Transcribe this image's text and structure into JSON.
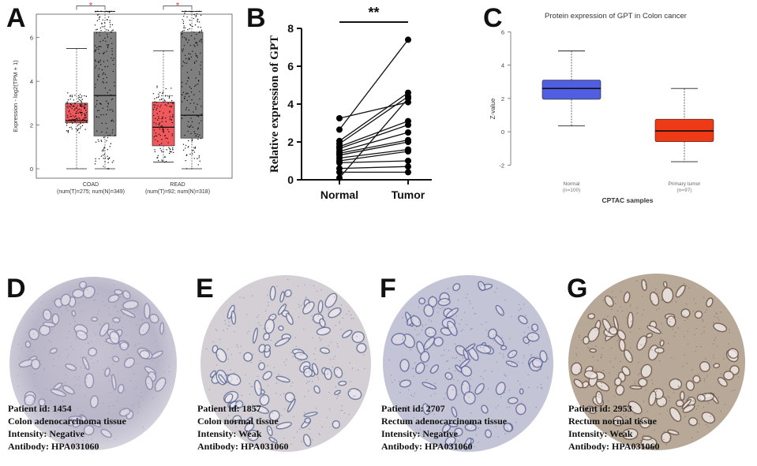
{
  "panels": {
    "a": {
      "label": "A"
    },
    "b": {
      "label": "B"
    },
    "c": {
      "label": "C"
    },
    "d": {
      "label": "D"
    },
    "e": {
      "label": "E"
    },
    "f": {
      "label": "F"
    },
    "g": {
      "label": "G"
    }
  },
  "colors": {
    "tumor_box": "#f0585c",
    "normal_box": "#7f7f7f",
    "cptac_normal": "#4f5fe0",
    "cptac_tumor": "#ee3a16",
    "sig_star": "#e8302a"
  },
  "chart_data": [
    {
      "id": "A",
      "type": "box",
      "ylabel": "Expression - log2(TPM + 1)",
      "ylim": [
        0,
        7
      ],
      "yticks": [
        "0",
        "2",
        "4",
        "6"
      ],
      "significance_symbol": "*",
      "groups": [
        {
          "name": "COAD",
          "sublabel": "(num(T)=275; num(N)=349)",
          "tumor": {
            "min": 0,
            "q1": 2.1,
            "median": 2.2,
            "q3": 3.0,
            "max": 5.5
          },
          "normal": {
            "min": 0,
            "q1": 1.5,
            "median": 3.35,
            "q3": 6.25,
            "max": 7.2
          }
        },
        {
          "name": "READ",
          "sublabel": "(num(T)=92; num(N)=318)",
          "tumor": {
            "min": 0.3,
            "q1": 1.05,
            "median": 1.9,
            "q3": 3.05,
            "max": 5.4
          },
          "normal": {
            "min": 0,
            "q1": 1.4,
            "median": 2.45,
            "q3": 6.25,
            "max": 7.2
          }
        }
      ]
    },
    {
      "id": "B",
      "type": "paired-line",
      "ylabel": "Relative expression of GPT",
      "categories": [
        "Normal",
        "Tumor"
      ],
      "ylim": [
        0,
        8
      ],
      "yticks": [
        "0",
        "2",
        "4",
        "6",
        "8"
      ],
      "significance": "**",
      "pairs": [
        [
          3.25,
          4.1
        ],
        [
          2.65,
          7.4
        ],
        [
          2.05,
          4.6
        ],
        [
          1.9,
          4.4
        ],
        [
          1.75,
          3.1
        ],
        [
          1.65,
          2.9
        ],
        [
          1.5,
          2.5
        ],
        [
          1.4,
          2.1
        ],
        [
          1.3,
          2.0
        ],
        [
          1.15,
          1.6
        ],
        [
          1.0,
          1.5
        ],
        [
          0.9,
          1.0
        ],
        [
          0.6,
          0.7
        ],
        [
          0.4,
          0.4
        ],
        [
          0.1,
          4.3
        ]
      ]
    },
    {
      "id": "C",
      "type": "box",
      "title": "Protein expression of GPT in Colon cancer",
      "ylabel": "Z-value",
      "xlabel": "CPTAC samples",
      "ylim": [
        -2.6,
        6.3
      ],
      "yticks": [
        "-2",
        "0",
        "2",
        "4",
        "6"
      ],
      "boxes": [
        {
          "name": "Normal",
          "sublabel": "(n=100)",
          "min": 0.35,
          "q1": 1.95,
          "median": 2.6,
          "q3": 3.1,
          "max": 4.85
        },
        {
          "name": "Primary tumor",
          "sublabel": "(n=97)",
          "min": -1.8,
          "q1": -0.6,
          "median": 0.05,
          "q3": 0.75,
          "max": 2.6
        }
      ]
    }
  ],
  "tissues": [
    {
      "id": "d",
      "lines": [
        "Patient id: 1454",
        "Colon adenocarcinoma tissue",
        "Intensity: Negative",
        "Antibody: HPA031060"
      ]
    },
    {
      "id": "e",
      "lines": [
        "Patient id: 1857",
        "Colon normal tissue",
        "Intensity: Weak",
        "Antibody: HPA031060"
      ]
    },
    {
      "id": "f",
      "lines": [
        "Patient id: 2707",
        "Rectum adenocarcinoma tissue",
        "Intensity: Negative",
        "Antibody: HPA031060"
      ]
    },
    {
      "id": "g",
      "lines": [
        "Patient id: 2953",
        "Rectum normal tissue",
        "Intensity: Weak",
        "Antibody: HPA031060"
      ]
    }
  ]
}
